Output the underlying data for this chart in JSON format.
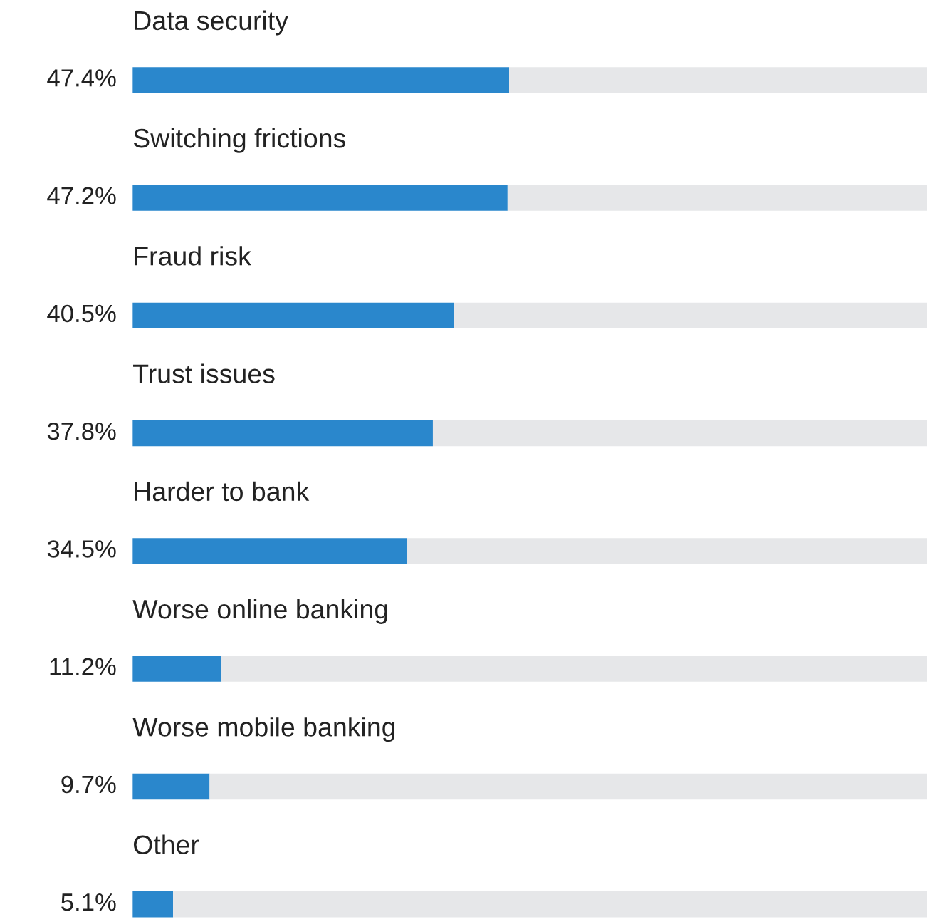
{
  "chart_data": {
    "type": "bar",
    "orientation": "horizontal",
    "stacked": true,
    "legend": false,
    "categories": [
      "Data security",
      "Switching frictions",
      "Fraud risk",
      "Trust issues",
      "Harder to bank",
      "Worse online banking",
      "Worse mobile banking",
      "Other"
    ],
    "xlim": [
      0,
      100
    ],
    "series": [
      {
        "color": "#2a87cc",
        "values": [
          47.4,
          47.2,
          40.5,
          37.8,
          34.5,
          11.2,
          9.7,
          5.1
        ],
        "value_labels": [
          "47.4%",
          "47.2%",
          "40.5%",
          "37.8%",
          "34.5%",
          "11.2%",
          "9.7%",
          "5.1%"
        ]
      },
      {
        "color": "#e6e7e9",
        "values": [
          52.6,
          52.8,
          59.5,
          62.2,
          65.5,
          88.8,
          90.3,
          94.9
        ]
      }
    ]
  }
}
